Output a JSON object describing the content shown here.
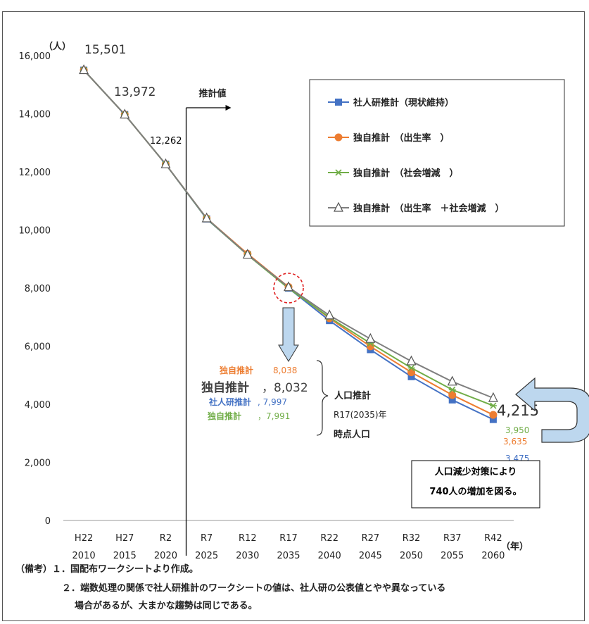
{
  "chart_data": {
    "type": "line",
    "ylabel": "（人）",
    "xlabel": "（年）",
    "ylim": [
      0,
      16000
    ],
    "yticks": [
      0,
      2000,
      4000,
      6000,
      8000,
      10000,
      12000,
      14000,
      16000
    ],
    "ytick_labels": [
      "0",
      "2,000",
      "4,000",
      "6,000",
      "8,000",
      "10,000",
      "12,000",
      "14,000",
      "16,000"
    ],
    "categories_era": [
      "H22",
      "H27",
      "R2",
      "R7",
      "R12",
      "R17",
      "R22",
      "R27",
      "R32",
      "R37",
      "R42"
    ],
    "categories_year": [
      "2010",
      "2015",
      "2020",
      "2025",
      "2030",
      "2035",
      "2040",
      "2045",
      "2050",
      "2055",
      "2060"
    ],
    "series": [
      {
        "name": "社人研推計（現状維持）",
        "color": "#4472C4",
        "marker": "square",
        "values": [
          15501,
          13972,
          12262,
          10380,
          9150,
          7997,
          6880,
          5880,
          4950,
          4150,
          3475
        ]
      },
      {
        "name": "独自推計　（出生率　）",
        "color": "#ED7D31",
        "marker": "circle",
        "values": [
          15501,
          13972,
          12262,
          10400,
          9180,
          8038,
          6960,
          5990,
          5100,
          4320,
          3635
        ]
      },
      {
        "name": "独自推計　（社会増減　）",
        "color": "#70AD47",
        "marker": "asterisk",
        "values": [
          15501,
          13972,
          12262,
          10390,
          9140,
          7991,
          6990,
          6100,
          5250,
          4500,
          3950
        ]
      },
      {
        "name": "独自推計　（出生率　＋社会増減　）",
        "color": "#7F7F7F",
        "marker": "triangle",
        "values": [
          15501,
          13972,
          12262,
          10400,
          9150,
          8032,
          7060,
          6250,
          5480,
          4780,
          4215
        ]
      }
    ],
    "legend_position": "top-right",
    "grid": false,
    "annotations": {
      "start_labels": [
        "15,501",
        "13,972",
        "12,262"
      ],
      "projection_label": "推計値",
      "end_labels": [
        "4,215",
        "3,950",
        "3,635",
        "3,475"
      ],
      "r17_block": [
        {
          "name": "独自推計",
          "value": "8,038",
          "color": "#ED7D31"
        },
        {
          "name": "独自推計",
          "value": "，8,032",
          "color": "#404040"
        },
        {
          "name": "社人研推計",
          "value": ", 7,997",
          "color": "#4472C4"
        },
        {
          "name": "独自推計",
          "value": "，7,991",
          "color": "#70AD47"
        }
      ],
      "brace_lines": [
        "人口推計",
        "R17(2035)年",
        "時点人口"
      ],
      "callout_lines": [
        "人口減少対策により",
        "740人の増加を図る。"
      ]
    }
  },
  "footnotes": {
    "line1": "（備考）１．国配布ワークシートより作成。",
    "line2": "２．端数処理の関係で社人研推計のワークシートの値は、社人研の公表値とやや異なっている",
    "line3": "場合があるが、大まかな趨勢は同じである。"
  }
}
